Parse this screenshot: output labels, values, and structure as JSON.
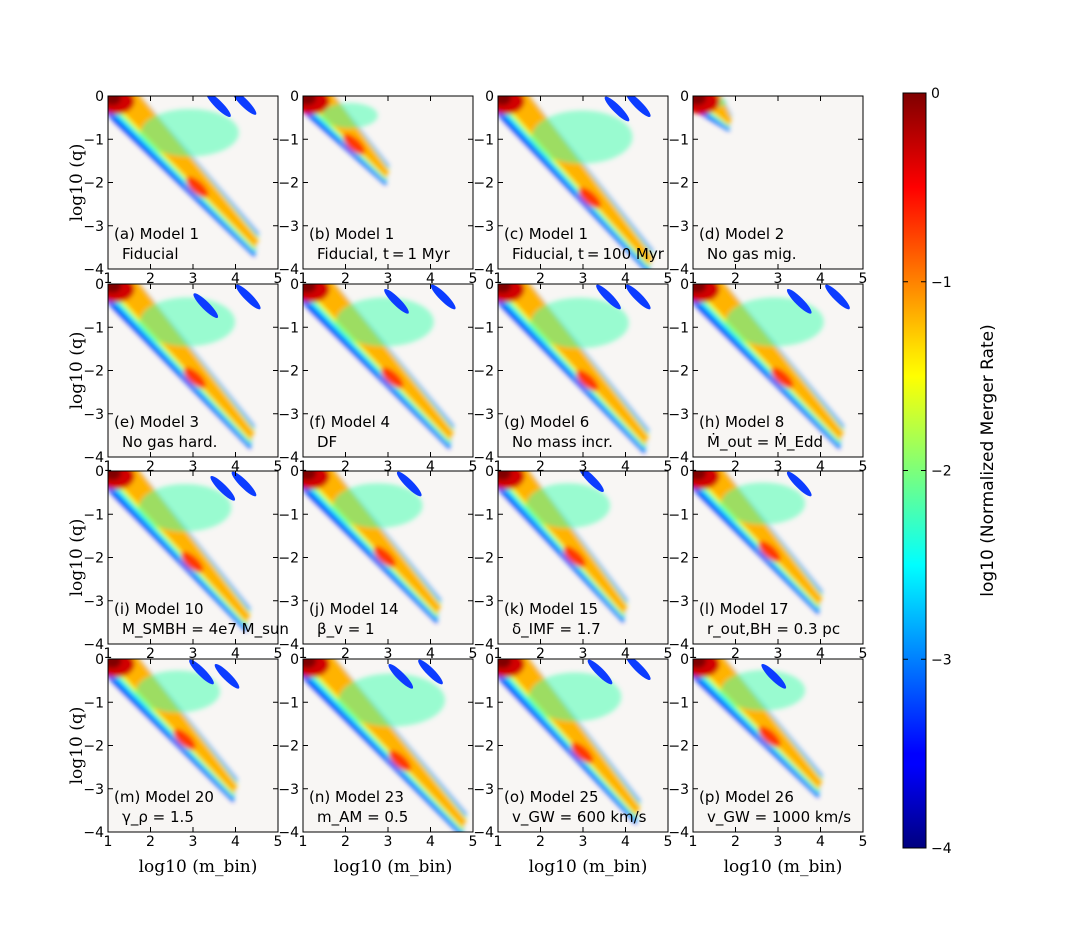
{
  "chart_data": {
    "type": "heatmap",
    "title": "",
    "xlabel": "log10 (m_bin)",
    "ylabel": "log10 (q)",
    "xlim": [
      1,
      5
    ],
    "ylim": [
      -4,
      0
    ],
    "x_ticks": [
      "1",
      "2",
      "3",
      "4",
      "5"
    ],
    "y_ticks": [
      "0",
      "−1",
      "−2",
      "−3",
      "−4"
    ],
    "colorbar": {
      "label": "log10 (Normalized Merger Rate)",
      "range": [
        -4,
        0
      ],
      "ticks": [
        "0",
        "−1",
        "−2",
        "−3",
        "−4"
      ],
      "colormap": "jet"
    },
    "panels": [
      {
        "id": "a",
        "label": "(a) Model 1",
        "sublabel": "Fiducial",
        "ridge_end": [
          4.5,
          -3.4
        ],
        "islands": [
          [
            3.6,
            -0.2
          ],
          [
            4.2,
            -0.15
          ]
        ]
      },
      {
        "id": "b",
        "label": "(b) Model 1",
        "sublabel": "Fiducial, t = 1 Myr",
        "ridge_end": [
          3.0,
          -1.8
        ],
        "islands": []
      },
      {
        "id": "c",
        "label": "(c) Model 1",
        "sublabel": "Fiducial, t = 100 Myr",
        "ridge_end": [
          4.6,
          -3.8
        ],
        "islands": [
          [
            3.8,
            -0.3
          ],
          [
            4.3,
            -0.2
          ]
        ]
      },
      {
        "id": "d",
        "label": "(d) Model 2",
        "sublabel": "No gas mig.",
        "ridge_end": [
          1.9,
          -0.6
        ],
        "islands": []
      },
      {
        "id": "e",
        "label": "(e) Model 3",
        "sublabel": "No gas hard.",
        "ridge_end": [
          4.4,
          -3.5
        ],
        "islands": [
          [
            3.3,
            -0.5
          ],
          [
            4.3,
            -0.3
          ]
        ]
      },
      {
        "id": "f",
        "label": "(f) Model 4",
        "sublabel": "DF",
        "ridge_end": [
          4.5,
          -3.5
        ],
        "islands": [
          [
            3.2,
            -0.4
          ],
          [
            4.3,
            -0.3
          ]
        ]
      },
      {
        "id": "g",
        "label": "(g) Model 6",
        "sublabel": "No mass incr.",
        "ridge_end": [
          4.5,
          -3.6
        ],
        "islands": [
          [
            3.6,
            -0.3
          ],
          [
            4.3,
            -0.3
          ]
        ]
      },
      {
        "id": "h",
        "label": "(h) Model 8",
        "sublabel": "Ṁ_out = Ṁ_Edd",
        "ridge_end": [
          4.5,
          -3.5
        ],
        "islands": [
          [
            3.5,
            -0.4
          ],
          [
            4.4,
            -0.3
          ]
        ]
      },
      {
        "id": "i",
        "label": "(i) Model 10",
        "sublabel": "M_SMBH = 4e7 M_sun",
        "ridge_end": [
          4.3,
          -3.4
        ],
        "islands": [
          [
            3.7,
            -0.4
          ],
          [
            4.2,
            -0.3
          ]
        ]
      },
      {
        "id": "j",
        "label": "(j) Model 14",
        "sublabel": "β_v = 1",
        "ridge_end": [
          4.2,
          -3.2
        ],
        "islands": [
          [
            3.5,
            -0.3
          ]
        ]
      },
      {
        "id": "k",
        "label": "(k) Model 15",
        "sublabel": "δ_IMF = 1.7",
        "ridge_end": [
          4.0,
          -3.2
        ],
        "islands": [
          [
            3.2,
            -0.2
          ]
        ]
      },
      {
        "id": "l",
        "label": "(l) Model 17",
        "sublabel": "r_out,BH = 0.3 pc",
        "ridge_end": [
          4.0,
          -3.0
        ],
        "islands": [
          [
            3.5,
            -0.3
          ]
        ]
      },
      {
        "id": "m",
        "label": "(m) Model 20",
        "sublabel": "γ_ρ = 1.5",
        "ridge_end": [
          4.0,
          -3.0
        ],
        "islands": [
          [
            3.2,
            -0.3
          ],
          [
            3.8,
            -0.4
          ]
        ]
      },
      {
        "id": "n",
        "label": "(n) Model 23",
        "sublabel": "m_AM = 0.5",
        "ridge_end": [
          4.8,
          -3.8
        ],
        "islands": [
          [
            3.3,
            -0.4
          ],
          [
            4.0,
            -0.3
          ]
        ]
      },
      {
        "id": "o",
        "label": "(o) Model 25",
        "sublabel": "v_GW = 600 km/s",
        "ridge_end": [
          4.3,
          -3.5
        ],
        "islands": [
          [
            3.4,
            -0.3
          ],
          [
            4.3,
            -0.2
          ]
        ]
      },
      {
        "id": "p",
        "label": "(p) Model 26",
        "sublabel": "v_GW = 1000 km/s",
        "ridge_end": [
          4.0,
          -2.9
        ],
        "islands": [
          [
            2.9,
            -0.4
          ]
        ]
      }
    ]
  }
}
